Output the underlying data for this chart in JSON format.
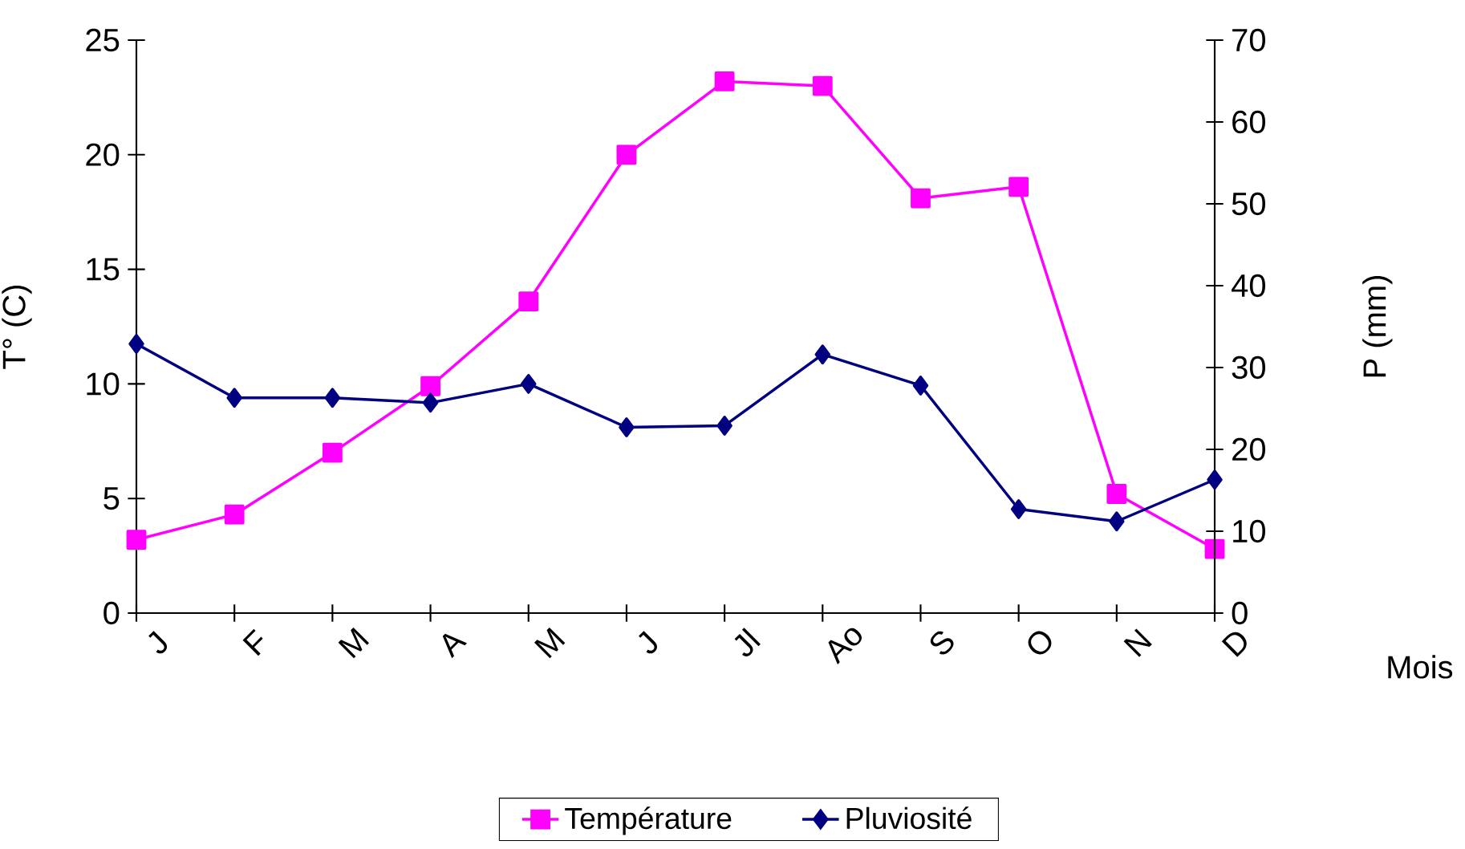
{
  "chart_data": {
    "type": "line",
    "xlabel": "Mois",
    "ylabel": "T° (C)",
    "y2label": "P (mm)",
    "categories": [
      "J",
      "F",
      "M",
      "A",
      "M",
      "J",
      "Jl",
      "Ao",
      "S",
      "O",
      "N",
      "D"
    ],
    "series": [
      {
        "name": "Température",
        "color": "#ff00ff",
        "marker": "square",
        "values": [
          3.2,
          4.3,
          7.0,
          9.9,
          13.6,
          20.0,
          23.2,
          23.0,
          18.1,
          18.6,
          5.2,
          2.8
        ]
      },
      {
        "name": "Pluviosité",
        "color": "#000080",
        "marker": "diamond",
        "axis": "y2",
        "values": [
          32.9,
          26.3,
          26.3,
          25.7,
          28.0,
          22.7,
          22.9,
          31.6,
          27.8,
          12.7,
          11.2,
          16.3
        ]
      }
    ],
    "ylim": [
      0,
      25
    ],
    "yticks": [
      0,
      5,
      10,
      15,
      20,
      25
    ],
    "y2lim": [
      0,
      70
    ],
    "y2ticks": [
      0,
      10,
      20,
      30,
      40,
      50,
      60,
      70
    ],
    "grid": false,
    "legend": "bottom"
  }
}
